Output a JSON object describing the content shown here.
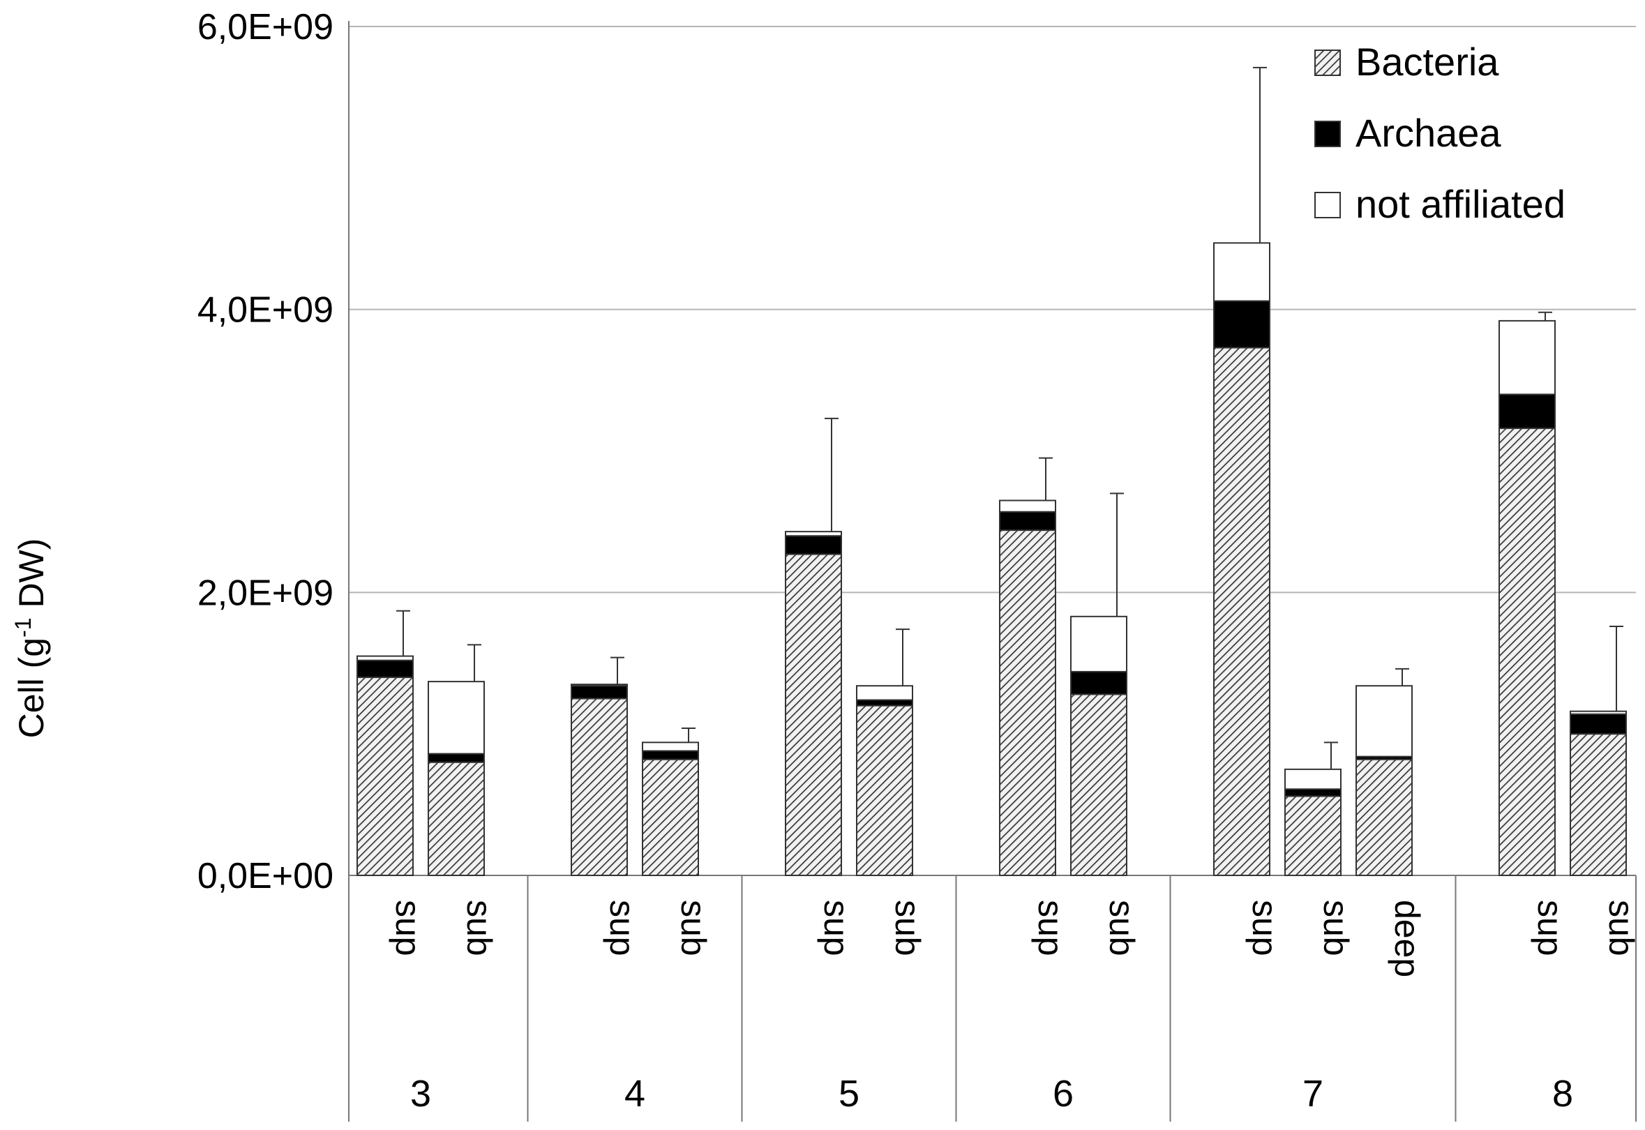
{
  "chart_data": {
    "type": "bar",
    "stacked": true,
    "ylabel": "Cell (g-1 DW)",
    "ylabel_parts": {
      "before": "Cell (g",
      "superscript": "-1",
      "after": " DW)"
    },
    "ylim": [
      0,
      6000000000
    ],
    "y_ticks": [
      0,
      2000000000,
      4000000000,
      6000000000
    ],
    "y_tick_labels": [
      "0,0E+00",
      "2,0E+09",
      "4,0E+09",
      "6,0E+09"
    ],
    "grid": true,
    "legend_position": "top-right",
    "groups": [
      {
        "label": "3",
        "categories": [
          "sup",
          "sub"
        ]
      },
      {
        "label": "4",
        "categories": [
          "sup",
          "sub"
        ]
      },
      {
        "label": "5",
        "categories": [
          "sup",
          "sub"
        ]
      },
      {
        "label": "6",
        "categories": [
          "sup",
          "sub"
        ]
      },
      {
        "label": "7",
        "categories": [
          "sup",
          "sub",
          "deep"
        ]
      },
      {
        "label": "8",
        "categories": [
          "sup",
          "sub"
        ]
      }
    ],
    "series": [
      {
        "name": "Bacteria",
        "pattern": "hatched",
        "values": [
          1400000000,
          800000000,
          1250000000,
          820000000,
          2270000000,
          1200000000,
          2440000000,
          1280000000,
          3730000000,
          560000000,
          820000000,
          3160000000,
          1000000000
        ]
      },
      {
        "name": "Archaea",
        "color": "#000000",
        "values": [
          120000000,
          60000000,
          90000000,
          60000000,
          130000000,
          40000000,
          130000000,
          160000000,
          330000000,
          50000000,
          20000000,
          240000000,
          140000000
        ]
      },
      {
        "name": "not affiliated",
        "color": "#ffffff",
        "values": [
          30000000,
          510000000,
          10000000,
          60000000,
          30000000,
          100000000,
          80000000,
          390000000,
          410000000,
          140000000,
          500000000,
          520000000,
          20000000
        ]
      }
    ],
    "error_bars_top": [
      1870000000,
      1630000000,
      1540000000,
      1040000000,
      3230000000,
      1740000000,
      2950000000,
      2700000000,
      5710000000,
      940000000,
      1460000000,
      3980000000,
      1760000000
    ]
  }
}
